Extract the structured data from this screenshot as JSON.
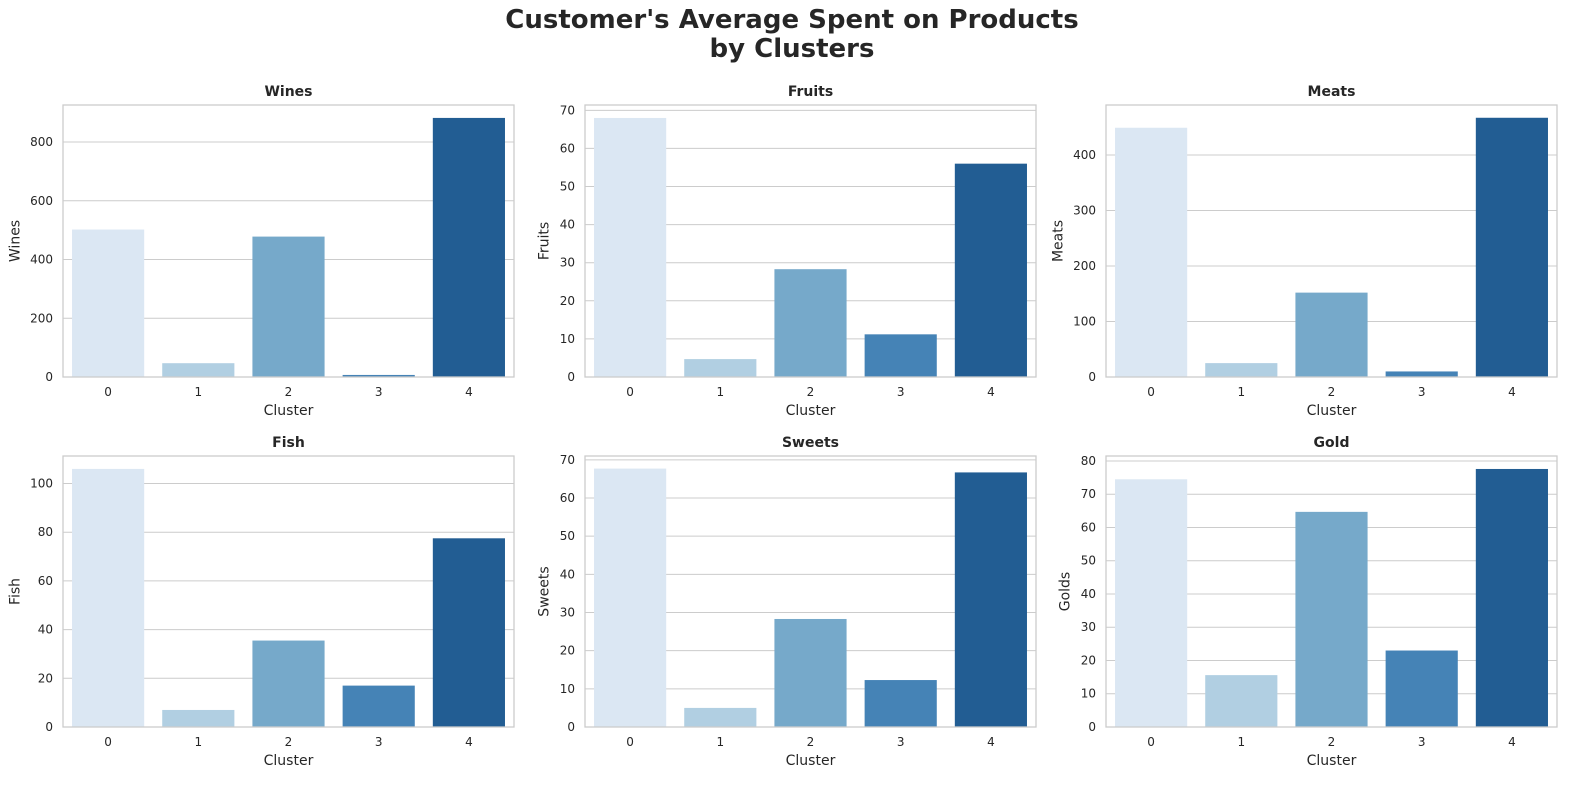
{
  "title_lines": [
    "Customer's Average Spent on Products",
    "by Clusters"
  ],
  "palette": [
    "#dbe7f3",
    "#b1cfe2",
    "#76a9ca",
    "#4583b6",
    "#225d93"
  ],
  "chart_data": [
    {
      "type": "bar",
      "title": "Wines",
      "xlabel": "Cluster",
      "ylabel": "Wines",
      "categories": [
        "0",
        "1",
        "2",
        "3",
        "4"
      ],
      "values": [
        502,
        47,
        478,
        7,
        882
      ],
      "ylim": [
        0,
        926
      ],
      "yticks": [
        0,
        200,
        400,
        600,
        800
      ],
      "grid": true
    },
    {
      "type": "bar",
      "title": "Fruits",
      "xlabel": "Cluster",
      "ylabel": "Fruits",
      "categories": [
        "0",
        "1",
        "2",
        "3",
        "4"
      ],
      "values": [
        68,
        4.7,
        28.3,
        11.2,
        56
      ],
      "ylim": [
        0,
        71.4
      ],
      "yticks": [
        0,
        10,
        20,
        30,
        40,
        50,
        60,
        70
      ],
      "grid": true
    },
    {
      "type": "bar",
      "title": "Meats",
      "xlabel": "Cluster",
      "ylabel": "Meats",
      "categories": [
        "0",
        "1",
        "2",
        "3",
        "4"
      ],
      "values": [
        449,
        25,
        152,
        10,
        467
      ],
      "ylim": [
        0,
        490
      ],
      "yticks": [
        0,
        100,
        200,
        300,
        400
      ],
      "grid": true
    },
    {
      "type": "bar",
      "title": "Fish",
      "xlabel": "Cluster",
      "ylabel": "Fish",
      "categories": [
        "0",
        "1",
        "2",
        "3",
        "4"
      ],
      "values": [
        106,
        7,
        35.5,
        17,
        77.5
      ],
      "ylim": [
        0,
        111.3
      ],
      "yticks": [
        0,
        20,
        40,
        60,
        80,
        100
      ],
      "grid": true
    },
    {
      "type": "bar",
      "title": "Sweets",
      "xlabel": "Cluster",
      "ylabel": "Sweets",
      "categories": [
        "0",
        "1",
        "2",
        "3",
        "4"
      ],
      "values": [
        67.7,
        5,
        28.3,
        12.3,
        66.7
      ],
      "ylim": [
        0,
        71
      ],
      "yticks": [
        0,
        10,
        20,
        30,
        40,
        50,
        60,
        70
      ],
      "grid": true
    },
    {
      "type": "bar",
      "title": "Gold",
      "xlabel": "Cluster",
      "ylabel": "Golds",
      "categories": [
        "0",
        "1",
        "2",
        "3",
        "4"
      ],
      "values": [
        74.5,
        15.6,
        64.7,
        23,
        77.6
      ],
      "ylim": [
        0,
        81.5
      ],
      "yticks": [
        0,
        10,
        20,
        30,
        40,
        50,
        60,
        70,
        80
      ],
      "grid": true
    }
  ]
}
